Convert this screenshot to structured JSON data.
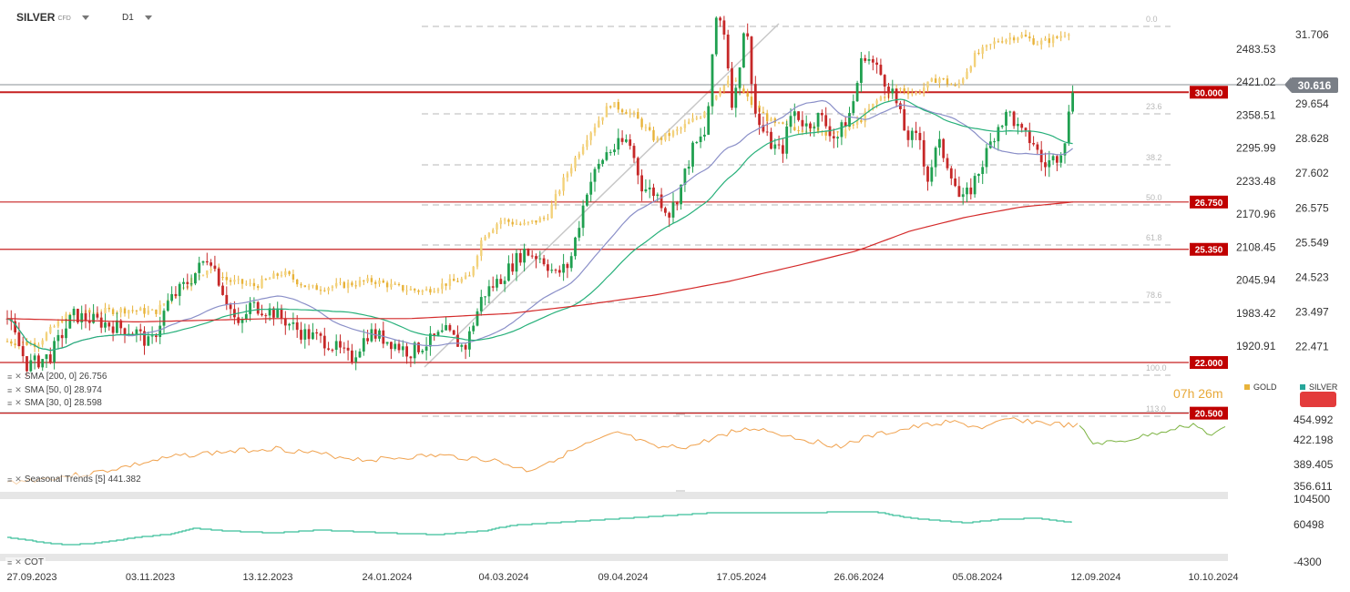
{
  "toolbar": {
    "symbol": "SILVER",
    "symbol_sub": "CFD",
    "timeframe": "D1"
  },
  "chart_data": [
    {
      "type": "candlestick",
      "id": "main",
      "series": [
        {
          "name": "SILVER",
          "color": "#26a69a"
        },
        {
          "name": "GOLD",
          "color": "#e8b33a"
        }
      ],
      "x_tick_labels": [
        "27.09.2023",
        "03.11.2023",
        "13.12.2023",
        "24.01.2024",
        "04.03.2024",
        "09.04.2024",
        "17.05.2024",
        "26.06.2024",
        "05.08.2024",
        "12.09.2024",
        "10.10.2024"
      ],
      "right_axis_ticks": [
        "31.706",
        "29.654",
        "28.628",
        "27.602",
        "26.575",
        "25.549",
        "24.523",
        "23.497",
        "22.471"
      ],
      "right_axis_range": [
        21.45,
        32.73
      ],
      "middle_axis_ticks": [
        "2483.53",
        "2421.02",
        "2358.51",
        "2295.99",
        "2233.48",
        "2170.96",
        "2108.45",
        "2045.94",
        "1983.42",
        "1920.91"
      ],
      "current_price": "30.616",
      "horizontal_levels": [
        {
          "label": "30.000",
          "value": 30.0
        },
        {
          "label": "26.750",
          "value": 26.75
        },
        {
          "label": "25.350",
          "value": 25.35
        },
        {
          "label": "22.000",
          "value": 22.0
        },
        {
          "label": "20.500",
          "value": 20.5
        }
      ],
      "fibonacci_labels": [
        "0.0",
        "23.6",
        "38.2",
        "50.0",
        "61.8",
        "78.6",
        "100.0",
        "113.0"
      ],
      "indicators": [
        {
          "label": "SMA [200, 0] 26.756",
          "color": "#d42a2a"
        },
        {
          "label": "SMA [50, 0] 28.974",
          "color": "#27b07a"
        },
        {
          "label": "SMA [30, 0] 28.598",
          "color": "#8a8fc8"
        }
      ],
      "countdown": "07h 26m",
      "legend": [
        "GOLD",
        "SILVER"
      ]
    },
    {
      "type": "line",
      "id": "seasonal",
      "title": "Seasonal Trends [5] 441.382",
      "y_ticks": [
        "454.992",
        "422.198",
        "389.405",
        "356.611"
      ],
      "colors": {
        "past": "#f0a24e",
        "projection": "#7cb342"
      }
    },
    {
      "type": "line",
      "id": "cot",
      "title": "COT",
      "y_ticks": [
        "104500",
        "60498",
        "-4300"
      ],
      "color": "#3bbf9a"
    }
  ]
}
